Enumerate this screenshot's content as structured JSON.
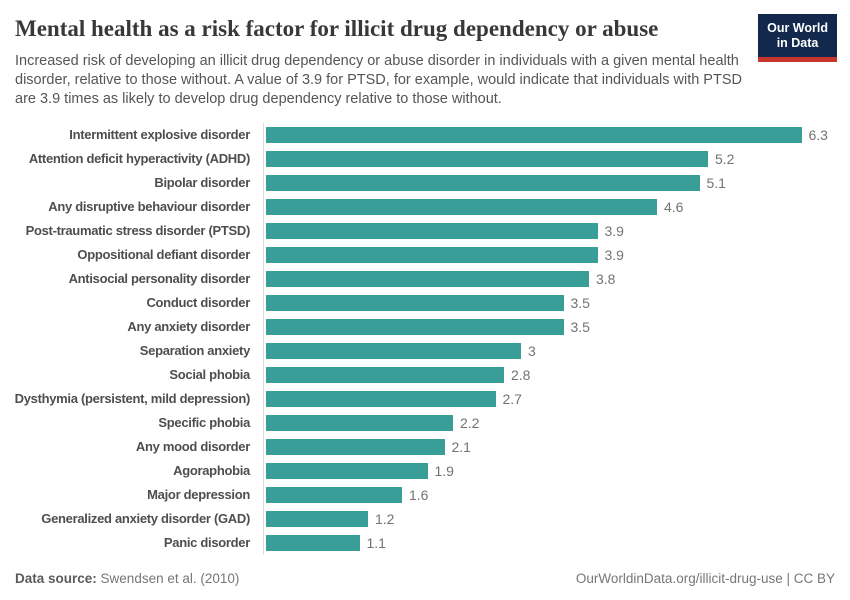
{
  "header": {
    "title": "Mental health as a risk factor for illicit drug dependency or abuse",
    "subtitle": "Increased risk of developing an illicit drug dependency or abuse disorder in individuals with a given mental health disorder, relative to those without. A value of 3.9 for PTSD, for example, would indicate that individuals with PTSD are 3.9 times as likely to develop drug dependency relative to those without.",
    "logo": {
      "line1": "Our World",
      "line2": "in Data",
      "bg_color": "#12294d",
      "accent_color": "#c5362c"
    }
  },
  "chart_data": {
    "type": "bar",
    "orientation": "horizontal",
    "title": "Mental health as a risk factor for illicit drug dependency or abuse",
    "xlabel": "",
    "ylabel": "",
    "xlim": [
      0,
      6.3
    ],
    "grid": false,
    "legend": "none",
    "bar_color": "#399e98",
    "categories": [
      "Intermittent explosive disorder",
      "Attention deficit hyperactivity (ADHD)",
      "Bipolar disorder",
      "Any disruptive behaviour disorder",
      "Post-traumatic stress disorder (PTSD)",
      "Oppositional defiant disorder",
      "Antisocial personality disorder",
      "Conduct disorder",
      "Any anxiety disorder",
      "Separation anxiety",
      "Social phobia",
      "Dysthymia (persistent, mild depression)",
      "Specific phobia",
      "Any mood disorder",
      "Agoraphobia",
      "Major depression",
      "Generalized anxiety disorder (GAD)",
      "Panic disorder"
    ],
    "values": [
      6.3,
      5.2,
      5.1,
      4.6,
      3.9,
      3.9,
      3.8,
      3.5,
      3.5,
      3,
      2.8,
      2.7,
      2.2,
      2.1,
      1.9,
      1.6,
      1.2,
      1.1
    ],
    "value_labels": [
      "6.3",
      "5.2",
      "5.1",
      "4.6",
      "3.9",
      "3.9",
      "3.8",
      "3.5",
      "3.5",
      "3",
      "2.8",
      "2.7",
      "2.2",
      "2.1",
      "1.9",
      "1.6",
      "1.2",
      "1.1"
    ]
  },
  "footer": {
    "source_label": "Data source:",
    "source_value": "Swendsen et al. (2010)",
    "credit": "OurWorldinData.org/illicit-drug-use | CC BY"
  }
}
